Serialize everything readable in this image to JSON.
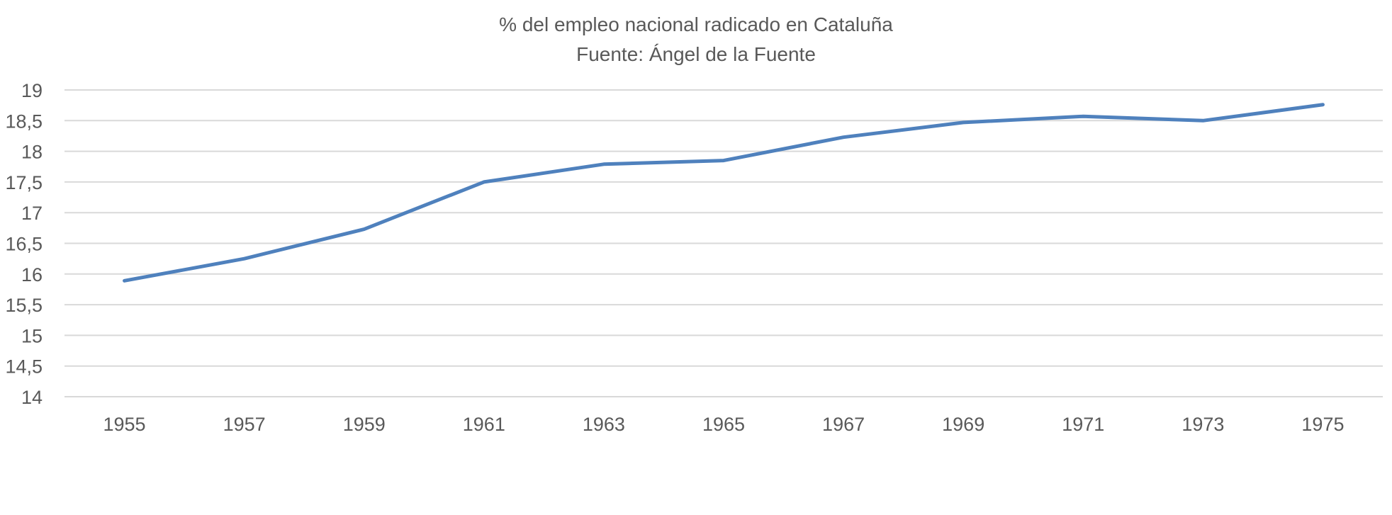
{
  "chart_data": {
    "type": "line",
    "title": "% del empleo nacional radicado en Cataluña",
    "subtitle": "Fuente: Ángel de la Fuente",
    "xlabel": "",
    "ylabel": "",
    "categories": [
      "1955",
      "1957",
      "1959",
      "1961",
      "1963",
      "1965",
      "1967",
      "1969",
      "1971",
      "1973",
      "1975"
    ],
    "series": [
      {
        "values": [
          15.89,
          16.25,
          16.73,
          17.5,
          17.79,
          17.85,
          18.23,
          18.47,
          18.57,
          18.5,
          18.76
        ],
        "color": "#4F81BD"
      }
    ],
    "ylim": [
      14,
      19
    ],
    "yticks": [
      "14",
      "14,5",
      "15",
      "15,5",
      "16",
      "16,5",
      "17",
      "17,5",
      "18",
      "18,5",
      "19"
    ],
    "ytick_values": [
      14,
      14.5,
      15,
      15.5,
      16,
      16.5,
      17,
      17.5,
      18,
      18.5,
      19
    ],
    "grid": "horizontal",
    "legend": "none",
    "gridline_color": "#D9D9D9",
    "text_color": "#595959"
  }
}
